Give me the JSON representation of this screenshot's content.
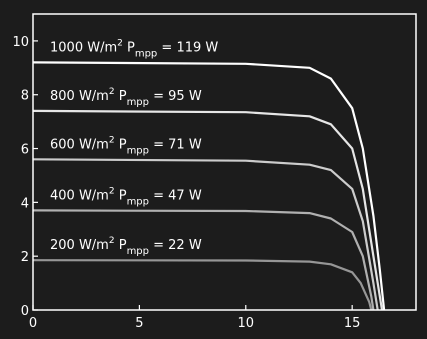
{
  "chart_data": {
    "type": "line",
    "title": "",
    "xlabel": "",
    "ylabel": "",
    "xlim": [
      0,
      18
    ],
    "ylim": [
      0,
      11
    ],
    "x_ticks": [
      0,
      5,
      10,
      15
    ],
    "y_ticks": [
      0,
      2,
      4,
      6,
      8,
      10
    ],
    "grid": false,
    "legend": "none",
    "colors": {
      "background": "#1c1c1c",
      "axes": "#ffffff",
      "text": "#ffffff"
    },
    "series": [
      {
        "label_parts": [
          "1000 W/m",
          "2",
          " P",
          "mpp",
          " = 119 W"
        ],
        "color": "#ffffff",
        "x": [
          0,
          10,
          13,
          14,
          15,
          15.5,
          16,
          16.3,
          16.5
        ],
        "y": [
          9.2,
          9.15,
          9.0,
          8.6,
          7.5,
          6.0,
          3.5,
          1.5,
          0
        ]
      },
      {
        "label_parts": [
          "800 W/m",
          "2",
          " P",
          "mpp",
          " = 95 W"
        ],
        "color": "#e6e6e6",
        "x": [
          0,
          10,
          13,
          14,
          15,
          15.5,
          16,
          16.4
        ],
        "y": [
          7.4,
          7.35,
          7.2,
          6.9,
          6.0,
          4.5,
          2.0,
          0
        ]
      },
      {
        "label_parts": [
          "600 W/m",
          "2",
          " P",
          "mpp",
          " = 71 W"
        ],
        "color": "#cccccc",
        "x": [
          0,
          10,
          13,
          14,
          15,
          15.5,
          16,
          16.2
        ],
        "y": [
          5.6,
          5.55,
          5.4,
          5.2,
          4.5,
          3.3,
          1.0,
          0
        ]
      },
      {
        "label_parts": [
          "400 W/m",
          "2",
          " P",
          "mpp",
          " = 47 W"
        ],
        "color": "#b0b0b0",
        "x": [
          0,
          10,
          13,
          14,
          15,
          15.5,
          15.9,
          16.0
        ],
        "y": [
          3.7,
          3.68,
          3.6,
          3.4,
          2.9,
          2.0,
          0.5,
          0
        ]
      },
      {
        "label_parts": [
          "200 W/m",
          "2",
          " P",
          "mpp",
          " = 22 W"
        ],
        "color": "#969696",
        "x": [
          0,
          10,
          13,
          14,
          15,
          15.4,
          15.8,
          15.9
        ],
        "y": [
          1.85,
          1.84,
          1.8,
          1.7,
          1.4,
          1.0,
          0.3,
          0
        ]
      }
    ]
  }
}
